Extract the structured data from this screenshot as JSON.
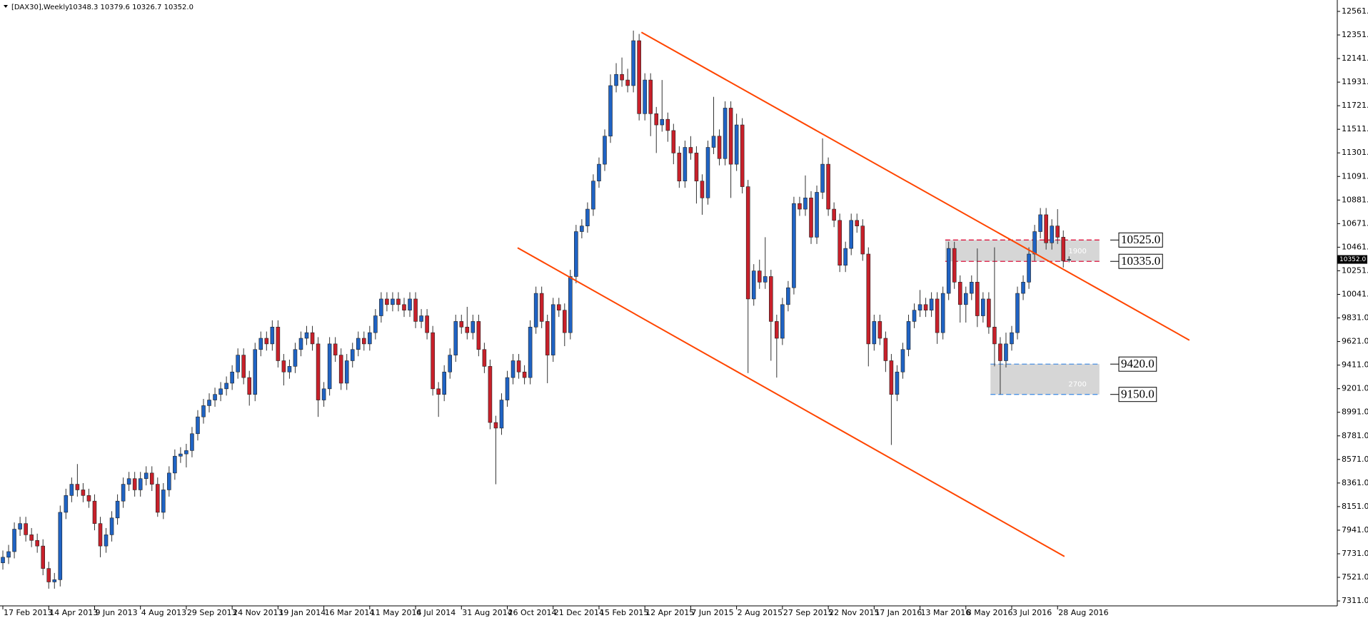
{
  "chart_data": {
    "type": "candlestick",
    "symbol": "[DAX30],Weekly",
    "quote": "10348.3 10379.6 10326.7 10352.0",
    "up_color": "#1f63c4",
    "down_color": "#c8202a",
    "ylim": [
      7267,
      12637
    ],
    "xlim": [
      -0.5,
      232.8
    ],
    "yticks": [
      {
        "value": 12561,
        "label": "12561.0"
      },
      {
        "value": 12351,
        "label": "12351.0"
      },
      {
        "value": 12141,
        "label": "12141.0"
      },
      {
        "value": 11931,
        "label": "11931.0"
      },
      {
        "value": 11721,
        "label": "11721.0"
      },
      {
        "value": 11511,
        "label": "11511.0"
      },
      {
        "value": 11301,
        "label": "11301.0"
      },
      {
        "value": 11091,
        "label": "11091.0"
      },
      {
        "value": 10881,
        "label": "10881.0"
      },
      {
        "value": 10671,
        "label": "10671.0"
      },
      {
        "value": 10461,
        "label": "10461.0"
      },
      {
        "value": 10251,
        "label": "10251.0"
      },
      {
        "value": 10041,
        "label": "10041.0"
      },
      {
        "value": 9831,
        "label": "9831.0"
      },
      {
        "value": 9621,
        "label": "9621.0"
      },
      {
        "value": 9411,
        "label": "9411.0"
      },
      {
        "value": 9201,
        "label": "9201.0"
      },
      {
        "value": 8991,
        "label": "8991.0"
      },
      {
        "value": 8781,
        "label": "8781.0"
      },
      {
        "value": 8571,
        "label": "8571.0"
      },
      {
        "value": 8361,
        "label": "8361.0"
      },
      {
        "value": 8151,
        "label": "8151.0"
      },
      {
        "value": 7941,
        "label": "7941.0"
      },
      {
        "value": 7731,
        "label": "7731.0"
      },
      {
        "value": 7521,
        "label": "7521.0"
      },
      {
        "value": 7311,
        "label": "7311.0"
      }
    ],
    "xticks": [
      {
        "value": 0,
        "label": "17 Feb 2013"
      },
      {
        "value": 8,
        "label": "14 Apr 2013"
      },
      {
        "value": 16,
        "label": "9 Jun 2013"
      },
      {
        "value": 24,
        "label": "4 Aug 2013"
      },
      {
        "value": 32,
        "label": "29 Sep 2013"
      },
      {
        "value": 40,
        "label": "24 Nov 2013"
      },
      {
        "value": 48,
        "label": "19 Jan 2014"
      },
      {
        "value": 56,
        "label": "16 Mar 2014"
      },
      {
        "value": 64,
        "label": "11 May 2014"
      },
      {
        "value": 72,
        "label": "6 Jul 2014"
      },
      {
        "value": 80,
        "label": "31 Aug 2014"
      },
      {
        "value": 88,
        "label": "26 Oct 2014"
      },
      {
        "value": 96,
        "label": "21 Dec 2014"
      },
      {
        "value": 104,
        "label": "15 Feb 2015"
      },
      {
        "value": 112,
        "label": "12 Apr 2015"
      },
      {
        "value": 120,
        "label": "7 Jun 2015"
      },
      {
        "value": 128,
        "label": "2 Aug 2015"
      },
      {
        "value": 136,
        "label": "27 Sep 2015"
      },
      {
        "value": 144,
        "label": "22 Nov 2015"
      },
      {
        "value": 152,
        "label": "17 Jan 2016"
      },
      {
        "value": 160,
        "label": "13 Mar 2016"
      },
      {
        "value": 168,
        "label": "8 May 2016"
      },
      {
        "value": 176,
        "label": "3 Jul 2016"
      },
      {
        "value": 184,
        "label": "28 Aug 2016"
      }
    ],
    "current_price": {
      "value": 10352,
      "label": "10352.0"
    },
    "trendlines": [
      {
        "color": "#ff4500",
        "points": [
          [
            111.4,
            12375
          ],
          [
            207,
            9633
          ]
        ]
      },
      {
        "color": "#ff4500",
        "points": [
          [
            89.8,
            10456
          ],
          [
            185.2,
            7707
          ]
        ]
      }
    ],
    "zones": [
      {
        "start": 164.4,
        "end": 191.3,
        "color": "#dc143c",
        "top": {
          "value": 10525,
          "label": "10525.0"
        },
        "bottom": {
          "value": 10335,
          "label": "10335.0"
        },
        "note": "1900"
      },
      {
        "start": 172.3,
        "end": 191.3,
        "color": "#4a90e2",
        "top": {
          "value": 9420,
          "label": "9420.0"
        },
        "bottom": {
          "value": 9150,
          "label": "9150.0"
        },
        "note": "2700"
      }
    ],
    "ohlc": [
      [
        7650,
        7760,
        7590,
        7700
      ],
      [
        7700,
        7810,
        7640,
        7750
      ],
      [
        7750,
        8010,
        7690,
        7950
      ],
      [
        7950,
        8060,
        7890,
        8000
      ],
      [
        8000,
        8060,
        7840,
        7900
      ],
      [
        7900,
        7960,
        7790,
        7850
      ],
      [
        7850,
        7910,
        7740,
        7800
      ],
      [
        7800,
        7860,
        7540,
        7600
      ],
      [
        7600,
        7660,
        7420,
        7480
      ],
      [
        7480,
        7560,
        7420,
        7500
      ],
      [
        7500,
        8160,
        7440,
        8100
      ],
      [
        8100,
        8310,
        8040,
        8250
      ],
      [
        8250,
        8410,
        8190,
        8350
      ],
      [
        8350,
        8530,
        8240,
        8300
      ],
      [
        8300,
        8360,
        8190,
        8250
      ],
      [
        8250,
        8310,
        8140,
        8200
      ],
      [
        8200,
        8260,
        7940,
        8000
      ],
      [
        8000,
        8060,
        7700,
        7800
      ],
      [
        7800,
        7960,
        7740,
        7900
      ],
      [
        7900,
        8110,
        7840,
        8050
      ],
      [
        8050,
        8260,
        7990,
        8200
      ],
      [
        8200,
        8410,
        8140,
        8350
      ],
      [
        8350,
        8460,
        8290,
        8400
      ],
      [
        8400,
        8460,
        8240,
        8300
      ],
      [
        8300,
        8460,
        8240,
        8400
      ],
      [
        8400,
        8510,
        8340,
        8450
      ],
      [
        8450,
        8510,
        8290,
        8350
      ],
      [
        8350,
        8410,
        8060,
        8100
      ],
      [
        8100,
        8360,
        8040,
        8300
      ],
      [
        8300,
        8510,
        8240,
        8450
      ],
      [
        8450,
        8660,
        8390,
        8600
      ],
      [
        8600,
        8680,
        8540,
        8620
      ],
      [
        8620,
        8710,
        8500,
        8650
      ],
      [
        8650,
        8860,
        8590,
        8800
      ],
      [
        8800,
        9010,
        8740,
        8950
      ],
      [
        8950,
        9110,
        8890,
        9050
      ],
      [
        9050,
        9160,
        8990,
        9100
      ],
      [
        9100,
        9210,
        9040,
        9150
      ],
      [
        9150,
        9260,
        9090,
        9200
      ],
      [
        9200,
        9310,
        9140,
        9250
      ],
      [
        9250,
        9410,
        9190,
        9350
      ],
      [
        9350,
        9560,
        9290,
        9500
      ],
      [
        9500,
        9560,
        9240,
        9300
      ],
      [
        9300,
        9360,
        9050,
        9150
      ],
      [
        9150,
        9610,
        9090,
        9550
      ],
      [
        9550,
        9710,
        9490,
        9650
      ],
      [
        9650,
        9710,
        9540,
        9600
      ],
      [
        9600,
        9810,
        9540,
        9750
      ],
      [
        9750,
        9810,
        9390,
        9450
      ],
      [
        9450,
        9510,
        9230,
        9350
      ],
      [
        9350,
        9460,
        9290,
        9400
      ],
      [
        9400,
        9610,
        9340,
        9550
      ],
      [
        9550,
        9710,
        9490,
        9650
      ],
      [
        9650,
        9760,
        9590,
        9700
      ],
      [
        9700,
        9760,
        9540,
        9600
      ],
      [
        9600,
        9660,
        8950,
        9100
      ],
      [
        9100,
        9260,
        9040,
        9200
      ],
      [
        9200,
        9660,
        9140,
        9600
      ],
      [
        9600,
        9660,
        9440,
        9500
      ],
      [
        9500,
        9560,
        9190,
        9250
      ],
      [
        9250,
        9510,
        9190,
        9450
      ],
      [
        9450,
        9610,
        9390,
        9550
      ],
      [
        9550,
        9710,
        9490,
        9650
      ],
      [
        9650,
        9710,
        9540,
        9600
      ],
      [
        9600,
        9760,
        9540,
        9700
      ],
      [
        9700,
        9910,
        9640,
        9850
      ],
      [
        9850,
        10060,
        9790,
        10000
      ],
      [
        10000,
        10060,
        9890,
        9950
      ],
      [
        9950,
        10060,
        9890,
        10000
      ],
      [
        10000,
        10060,
        9890,
        9950
      ],
      [
        9950,
        10010,
        9840,
        9900
      ],
      [
        9900,
        10060,
        9840,
        10000
      ],
      [
        10000,
        10060,
        9740,
        9800
      ],
      [
        9800,
        9910,
        9740,
        9850
      ],
      [
        9850,
        9910,
        9640,
        9700
      ],
      [
        9700,
        9760,
        9140,
        9200
      ],
      [
        9200,
        9260,
        8950,
        9150
      ],
      [
        9150,
        9410,
        9090,
        9350
      ],
      [
        9350,
        9560,
        9290,
        9500
      ],
      [
        9500,
        9860,
        9440,
        9800
      ],
      [
        9800,
        9860,
        9690,
        9750
      ],
      [
        9750,
        9930,
        9640,
        9700
      ],
      [
        9700,
        9860,
        9640,
        9800
      ],
      [
        9800,
        9860,
        9490,
        9550
      ],
      [
        9550,
        9610,
        9340,
        9400
      ],
      [
        9400,
        9460,
        8840,
        8900
      ],
      [
        8900,
        8960,
        8350,
        8850
      ],
      [
        8850,
        9160,
        8790,
        9100
      ],
      [
        9100,
        9360,
        9040,
        9300
      ],
      [
        9300,
        9510,
        9240,
        9450
      ],
      [
        9450,
        9510,
        9290,
        9350
      ],
      [
        9350,
        9410,
        9240,
        9300
      ],
      [
        9300,
        9810,
        9240,
        9750
      ],
      [
        9750,
        10110,
        9690,
        10050
      ],
      [
        10050,
        10110,
        9740,
        9800
      ],
      [
        9800,
        9860,
        9250,
        9500
      ],
      [
        9500,
        10010,
        9440,
        9950
      ],
      [
        9950,
        10010,
        9840,
        9900
      ],
      [
        9900,
        9960,
        9580,
        9700
      ],
      [
        9700,
        10260,
        9640,
        10200
      ],
      [
        10200,
        10660,
        10140,
        10600
      ],
      [
        10600,
        10710,
        10540,
        10650
      ],
      [
        10650,
        10860,
        10590,
        10800
      ],
      [
        10800,
        11110,
        10740,
        11050
      ],
      [
        11050,
        11260,
        10990,
        11200
      ],
      [
        11200,
        11510,
        11140,
        11450
      ],
      [
        11450,
        12000,
        11390,
        11900
      ],
      [
        11900,
        12100,
        11840,
        12000
      ],
      [
        12000,
        12150,
        11890,
        11950
      ],
      [
        11950,
        12050,
        11840,
        11900
      ],
      [
        11900,
        12390,
        11840,
        12300
      ],
      [
        12300,
        12360,
        11590,
        11650
      ],
      [
        11650,
        12010,
        11590,
        11950
      ],
      [
        11950,
        12010,
        11450,
        11650
      ],
      [
        11650,
        11710,
        11300,
        11550
      ],
      [
        11550,
        11950,
        11490,
        11600
      ],
      [
        11600,
        11660,
        11400,
        11500
      ],
      [
        11500,
        11560,
        11200,
        11300
      ],
      [
        11300,
        11360,
        10990,
        11050
      ],
      [
        11050,
        11410,
        10990,
        11350
      ],
      [
        11350,
        11450,
        11240,
        11300
      ],
      [
        11300,
        11360,
        10850,
        11050
      ],
      [
        11050,
        11110,
        10750,
        10900
      ],
      [
        10900,
        11410,
        10840,
        11350
      ],
      [
        11350,
        11800,
        11290,
        11450
      ],
      [
        11450,
        11510,
        11190,
        11250
      ],
      [
        11250,
        11760,
        11190,
        11700
      ],
      [
        11700,
        11760,
        10900,
        11200
      ],
      [
        11200,
        11650,
        11140,
        11550
      ],
      [
        11550,
        11610,
        10940,
        11000
      ],
      [
        11000,
        11060,
        9340,
        10000
      ],
      [
        10000,
        10310,
        9940,
        10250
      ],
      [
        10250,
        10350,
        10090,
        10150
      ],
      [
        10150,
        10550,
        10090,
        10200
      ],
      [
        10200,
        10260,
        9450,
        9800
      ],
      [
        9800,
        9860,
        9300,
        9650
      ],
      [
        9650,
        10010,
        9590,
        9950
      ],
      [
        9950,
        10160,
        9890,
        10100
      ],
      [
        10100,
        10910,
        10040,
        10850
      ],
      [
        10850,
        10910,
        10740,
        10800
      ],
      [
        10800,
        11100,
        10740,
        10900
      ],
      [
        10900,
        10960,
        10490,
        10550
      ],
      [
        10550,
        11010,
        10490,
        10950
      ],
      [
        10950,
        11430,
        10890,
        11200
      ],
      [
        11200,
        11260,
        10740,
        10800
      ],
      [
        10800,
        10860,
        10640,
        10700
      ],
      [
        10700,
        10760,
        10240,
        10300
      ],
      [
        10300,
        10510,
        10240,
        10450
      ],
      [
        10450,
        10760,
        10390,
        10700
      ],
      [
        10700,
        10760,
        10590,
        10650
      ],
      [
        10650,
        10710,
        10340,
        10400
      ],
      [
        10400,
        10460,
        9400,
        9600
      ],
      [
        9600,
        9860,
        9540,
        9800
      ],
      [
        9800,
        9860,
        9590,
        9650
      ],
      [
        9650,
        9710,
        9350,
        9450
      ],
      [
        9450,
        9510,
        8700,
        9150
      ],
      [
        9150,
        9410,
        9090,
        9350
      ],
      [
        9350,
        9610,
        9290,
        9550
      ],
      [
        9550,
        9860,
        9490,
        9800
      ],
      [
        9800,
        9960,
        9740,
        9900
      ],
      [
        9900,
        10080,
        9840,
        9950
      ],
      [
        9950,
        10010,
        9840,
        9900
      ],
      [
        9900,
        10060,
        9840,
        10000
      ],
      [
        10000,
        10060,
        9600,
        9700
      ],
      [
        9700,
        10110,
        9640,
        10050
      ],
      [
        10050,
        10510,
        9990,
        10450
      ],
      [
        10450,
        10510,
        10090,
        10150
      ],
      [
        10150,
        10210,
        9790,
        9950
      ],
      [
        9950,
        10110,
        9790,
        10050
      ],
      [
        10050,
        10210,
        9990,
        10150
      ],
      [
        10150,
        10450,
        9750,
        9850
      ],
      [
        9850,
        10060,
        9790,
        10000
      ],
      [
        10000,
        10060,
        9690,
        9750
      ],
      [
        9750,
        10460,
        9400,
        9600
      ],
      [
        9600,
        9660,
        9150,
        9450
      ],
      [
        9450,
        9700,
        9390,
        9600
      ],
      [
        9600,
        9760,
        9540,
        9700
      ],
      [
        9700,
        10110,
        9640,
        10050
      ],
      [
        10050,
        10210,
        9990,
        10150
      ],
      [
        10150,
        10460,
        10090,
        10400
      ],
      [
        10400,
        10660,
        10340,
        10600
      ],
      [
        10600,
        10810,
        10540,
        10750
      ],
      [
        10750,
        10810,
        10440,
        10500
      ],
      [
        10500,
        10710,
        10440,
        10650
      ],
      [
        10650,
        10800,
        10490,
        10550
      ],
      [
        10550,
        10610,
        10280,
        10340
      ],
      [
        10348.3,
        10379.6,
        10326.7,
        10352
      ]
    ]
  }
}
